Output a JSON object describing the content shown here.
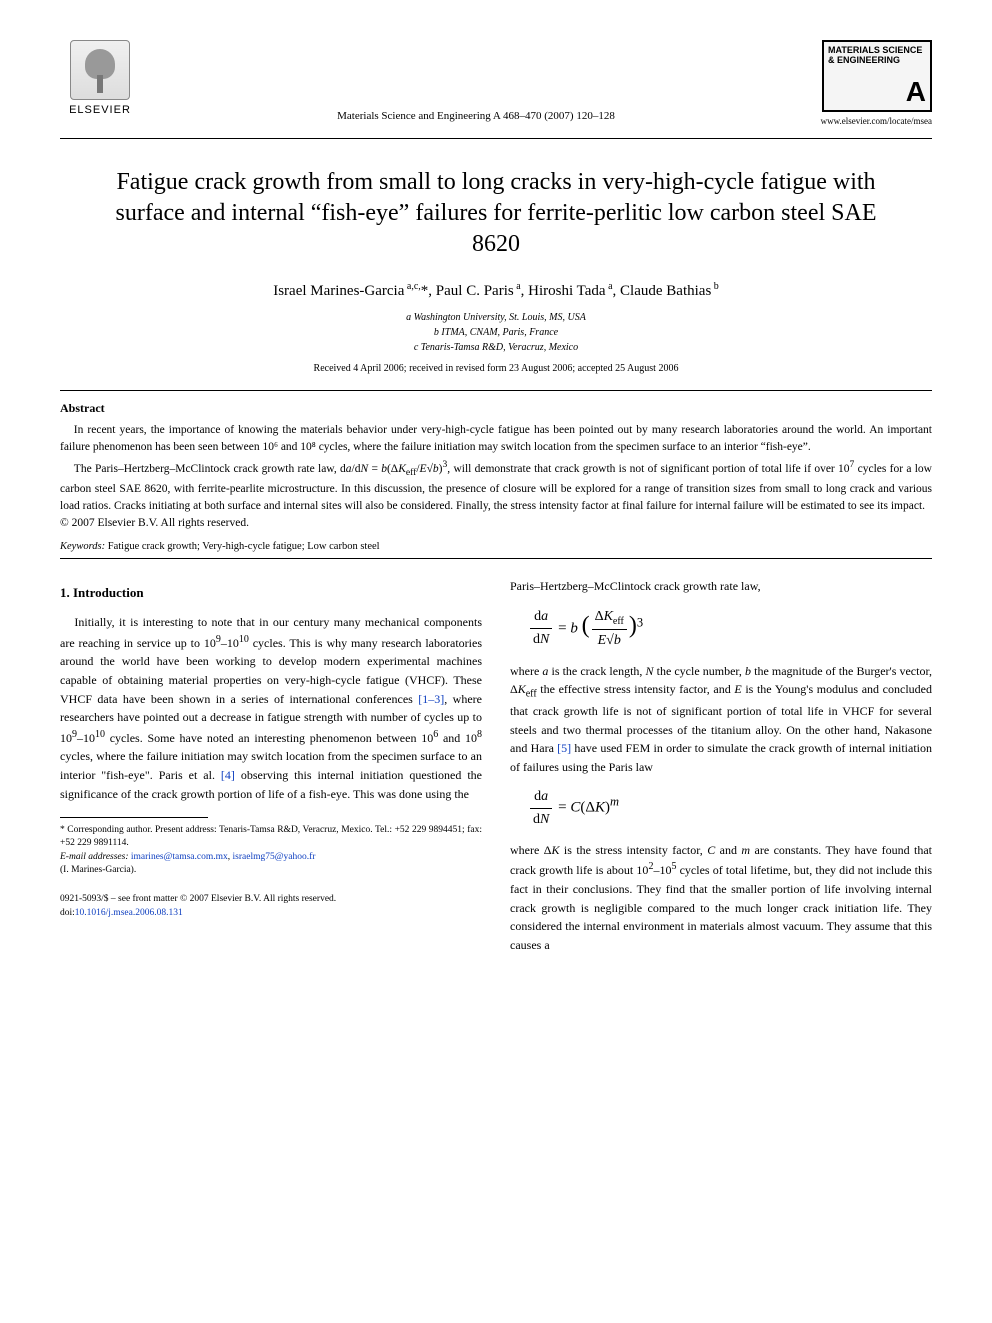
{
  "publisher": {
    "name": "ELSEVIER",
    "journal_ref": "Materials Science and Engineering A  468–470 (2007) 120–128",
    "journal_logo_title": "MATERIALS SCIENCE & ENGINEERING",
    "journal_logo_letter": "A",
    "journal_url": "www.elsevier.com/locate/msea"
  },
  "paper": {
    "title": "Fatigue crack growth from small to long cracks in very-high-cycle fatigue with surface and internal “fish-eye” failures for ferrite-perlitic low carbon steel SAE 8620",
    "authors_html": "Israel Marines-Garcia <sup>a,c,</sup>*, Paul C. Paris <sup>a</sup>, Hiroshi Tada <sup>a</sup>, Claude Bathias <sup>b</sup>",
    "affiliations": [
      "a Washington University, St. Louis, MS, USA",
      "b ITMA, CNAM, Paris, France",
      "c Tenaris-Tamsa R&D, Veracruz, Mexico"
    ],
    "dates": "Received 4 April 2006; received in revised form 23 August 2006; accepted 25 August 2006"
  },
  "abstract": {
    "label": "Abstract",
    "p1": "In recent years, the importance of knowing the materials behavior under very-high-cycle fatigue has been pointed out by many research laboratories around the world. An important failure phenomenon has been seen between 10⁶ and 10⁸ cycles, where the failure initiation may switch location from the specimen surface to an interior “fish-eye”.",
    "p2": "The Paris–Hertzberg–McClintock crack growth rate law, d a/d N = b(ΔK_eff /E√b)³, will demonstrate that crack growth is not of significant portion of total life if over 10⁷ cycles for a low carbon steel SAE 8620, with ferrite-pearlite microstructure. In this discussion, the presence of closure will be explored for a range of transition sizes from small to long crack and various load ratios. Cracks initiating at both surface and internal sites will also be considered. Finally, the stress intensity factor at final failure for internal failure will be estimated to see its impact.",
    "copyright": "© 2007 Elsevier B.V. All rights reserved."
  },
  "keywords": {
    "label": "Keywords:",
    "text": " Fatigue crack growth; Very-high-cycle fatigue; Low carbon steel"
  },
  "intro": {
    "heading": "1.  Introduction",
    "col1_p1": "Initially, it is interesting to note that in our century many mechanical components are reaching in service up to 10⁹–10¹⁰ cycles. This is why many research laboratories around the world have been working to develop modern experimental machines capable of obtaining material properties on very-high-cycle fatigue (VHCF). These VHCF data have been shown in a series of international conferences [1–3], where researchers have pointed out a decrease in fatigue strength with number of cycles up to 10⁹–10¹⁰ cycles. Some have noted an interesting phenomenon between 10⁶ and 10⁸ cycles, where the failure initiation may switch location from the specimen surface to an interior “fish-eye”. Paris et al. [4] observing this internal initiation questioned the significance of the crack growth portion of life of a fish-eye. This was done using the",
    "col2_lead": "Paris–Hertzberg–McClintock crack growth rate law,",
    "col2_p1": "where a is the crack length, N the cycle number, b the magnitude of the Burger's vector, ΔK_eff the effective stress intensity factor, and E is the Young's modulus and concluded that crack growth life is not of significant portion of total life in VHCF for several steels and two thermal processes of the titanium alloy. On the other hand, Nakasone and Hara [5] have used FEM in order to simulate the crack growth of internal initiation of failures using the Paris law",
    "col2_p2": "where ΔK is the stress intensity factor, C and m are constants. They have found that crack growth life is about 10²–10⁵ cycles of total lifetime, but, they did not include this fact in their conclusions. They find that the smaller portion of life involving internal crack growth is negligible compared to the much longer crack initiation life. They considered the internal environment in materials almost vacuum. They assume that this causes a"
  },
  "equations": {
    "eq1_lhs_num": "da",
    "eq1_lhs_den": "dN",
    "eq1_mid": " = b",
    "eq1_rhs_num": "ΔK_eff",
    "eq1_rhs_den": "E√b",
    "eq1_exp": "3",
    "eq2_lhs_num": "da",
    "eq2_lhs_den": "dN",
    "eq2_rhs": " = C(ΔK)",
    "eq2_exp": "m"
  },
  "footnotes": {
    "corr": "* Corresponding author. Present address: Tenaris-Tamsa R&D, Veracruz, Mexico. Tel.: +52 229 9894451; fax: +52 229 9891114.",
    "email_label": "E-mail addresses: ",
    "email1": "imarines@tamsa.com.mx",
    "sep": ", ",
    "email2": "israelmg75@yahoo.fr",
    "email_tail": " (I. Marines-Garcia)."
  },
  "footer": {
    "line1": "0921-5093/$ – see front matter © 2007 Elsevier B.V. All rights reserved.",
    "doi_label": "doi:",
    "doi": "10.1016/j.msea.2006.08.131"
  },
  "refs": {
    "r13": "[1–3]",
    "r4": "[4]",
    "r5": "[5]"
  }
}
